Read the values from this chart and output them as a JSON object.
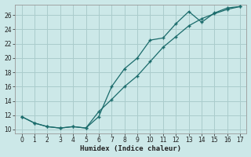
{
  "xlabel": "Humidex (Indice chaleur)",
  "background_color": "#cce8e8",
  "grid_color": "#aacccc",
  "line_color": "#1a6b6b",
  "xlim": [
    -0.5,
    17.5
  ],
  "ylim": [
    9.5,
    27.5
  ],
  "xticks": [
    0,
    1,
    2,
    3,
    4,
    5,
    6,
    7,
    8,
    9,
    10,
    11,
    12,
    13,
    14,
    15,
    16,
    17
  ],
  "yticks": [
    10,
    12,
    14,
    16,
    18,
    20,
    22,
    24,
    26
  ],
  "line1_x": [
    0,
    1,
    2,
    3,
    4,
    5,
    6,
    7,
    8,
    9,
    10,
    11,
    12,
    13,
    14,
    15,
    16,
    17
  ],
  "line1_y": [
    11.8,
    10.9,
    10.4,
    10.2,
    10.4,
    10.2,
    11.8,
    16.0,
    18.5,
    20.0,
    22.5,
    22.8,
    24.8,
    26.5,
    25.0,
    26.3,
    27.0,
    27.2
  ],
  "line2_x": [
    0,
    1,
    2,
    3,
    4,
    5,
    6,
    7,
    8,
    9,
    10,
    11,
    12,
    13,
    14,
    15,
    16,
    17
  ],
  "line2_y": [
    11.8,
    10.9,
    10.4,
    10.2,
    10.4,
    10.2,
    12.5,
    14.2,
    16.0,
    17.5,
    19.5,
    21.5,
    23.0,
    24.5,
    25.5,
    26.2,
    26.8,
    27.2
  ]
}
